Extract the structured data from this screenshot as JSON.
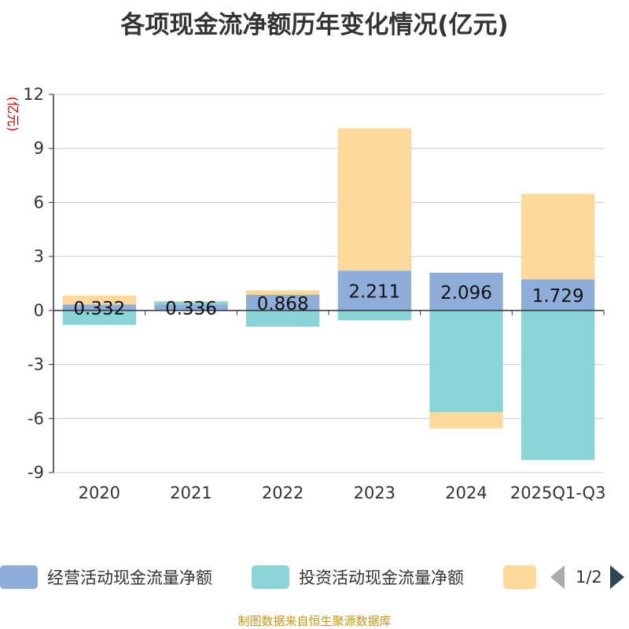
{
  "chart_data": {
    "type": "bar",
    "title": "各项现金流净额历年变化情况(亿元)",
    "ylabel": "(亿元)",
    "xlabel": "",
    "ylim": [
      -9,
      12
    ],
    "yticks": [
      -9,
      -6,
      -3,
      0,
      3,
      6,
      9,
      12
    ],
    "categories": [
      "2020",
      "2021",
      "2022",
      "2023",
      "2024",
      "2025Q1-Q3"
    ],
    "stacked": true,
    "series": [
      {
        "name": "经营活动现金流量净额",
        "color": "#8eadd9",
        "values": [
          0.332,
          0.336,
          0.868,
          2.211,
          2.096,
          1.729
        ],
        "labels": [
          "0.332",
          "0.336",
          "0.868",
          "2.211",
          "2.096",
          "1.729"
        ]
      },
      {
        "name": "投资活动现金流量净额",
        "color": "#88d4d6",
        "values": [
          -0.8,
          0.15,
          -0.9,
          -0.55,
          -5.65,
          -8.3
        ]
      },
      {
        "name": "",
        "color": "#fdd89b",
        "values": [
          0.5,
          0.05,
          0.25,
          7.9,
          -0.9,
          4.75
        ]
      }
    ]
  },
  "legend": {
    "pager_text": "1/2"
  },
  "source_note": "制图数据来自恒生聚源数据库"
}
